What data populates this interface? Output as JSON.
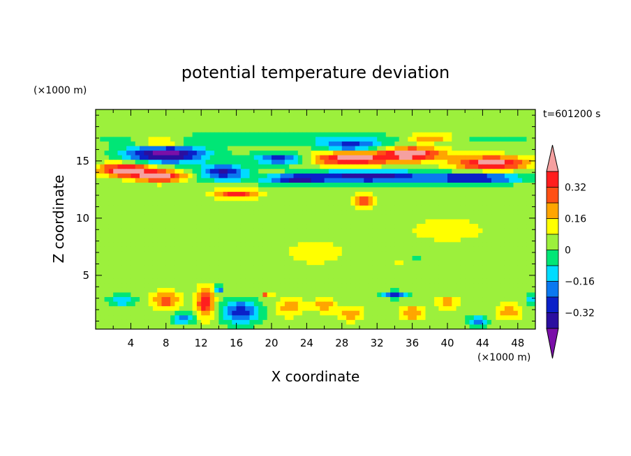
{
  "chart_data": {
    "type": "heatmap",
    "title": "potential temperature deviation",
    "xlabel": "X coordinate",
    "ylabel": "Z coordinate",
    "x_unit": "(×1000 m)",
    "y_unit": "(×1000 m)",
    "time_label": "t=601200 s",
    "xlim": [
      0,
      50
    ],
    "ylim": [
      0.3,
      19.5
    ],
    "x_ticks": [
      4,
      8,
      12,
      16,
      20,
      24,
      28,
      32,
      36,
      40,
      44,
      48
    ],
    "y_ticks": [
      5,
      10,
      15
    ],
    "grid": false,
    "legend": "colorbar-right",
    "colorbar": {
      "levels": [
        -0.4,
        -0.32,
        -0.24,
        -0.16,
        -0.08,
        0,
        0.08,
        0.16,
        0.24,
        0.32,
        0.4
      ],
      "labels": [
        "0.32",
        "0.16",
        "0",
        "−0.16",
        "−0.32"
      ],
      "label_values": [
        0.32,
        0.16,
        0,
        -0.16,
        -0.32
      ],
      "colors": [
        "#7a0fa8",
        "#2a0ea0",
        "#0a20c8",
        "#0a78f0",
        "#00dcff",
        "#00e676",
        "#9cf03c",
        "#ffff00",
        "#ffa500",
        "#ff5014",
        "#ff1e1e",
        "#f5a0a0"
      ]
    },
    "background_value": 0.04,
    "features": [
      {
        "x": 25,
        "z": 13.4,
        "sx": 25,
        "sz": 0.5,
        "amp": -0.1
      },
      {
        "x": 25,
        "z": 16.9,
        "sx": 25,
        "sz": 0.5,
        "amp": -0.1
      },
      {
        "x": 8,
        "z": 15.6,
        "sx": 4.5,
        "sz": 0.8,
        "amp": -0.5
      },
      {
        "x": 3.5,
        "z": 14.2,
        "sx": 3.2,
        "sz": 0.6,
        "amp": 0.44
      },
      {
        "x": 7.5,
        "z": 13.6,
        "sx": 3,
        "sz": 0.5,
        "amp": 0.44
      },
      {
        "x": 7.5,
        "z": 16.6,
        "sx": 2.5,
        "sz": 0.4,
        "amp": 0.3
      },
      {
        "x": 14.5,
        "z": 14.1,
        "sx": 2.5,
        "sz": 0.6,
        "amp": -0.36
      },
      {
        "x": 21,
        "z": 15.2,
        "sx": 3,
        "sz": 0.5,
        "amp": -0.34
      },
      {
        "x": 29,
        "z": 16.3,
        "sx": 3.5,
        "sz": 0.5,
        "amp": -0.3
      },
      {
        "x": 29,
        "z": 15.2,
        "sx": 4.5,
        "sz": 0.6,
        "amp": 0.42
      },
      {
        "x": 36,
        "z": 15.6,
        "sx": 3.5,
        "sz": 0.6,
        "amp": 0.42
      },
      {
        "x": 45,
        "z": 14.8,
        "sx": 4,
        "sz": 0.6,
        "amp": 0.42
      },
      {
        "x": 38,
        "z": 17,
        "sx": 3,
        "sz": 0.4,
        "amp": 0.25
      },
      {
        "x": 31,
        "z": 13.7,
        "sx": 6,
        "sz": 0.5,
        "amp": -0.36
      },
      {
        "x": 43,
        "z": 13.5,
        "sx": 5,
        "sz": 0.45,
        "amp": -0.34
      },
      {
        "x": 23,
        "z": 13.4,
        "sx": 3,
        "sz": 0.4,
        "amp": -0.28
      },
      {
        "x": 16,
        "z": 12.1,
        "sx": 2.5,
        "sz": 0.4,
        "amp": 0.32
      },
      {
        "x": 30.5,
        "z": 11.5,
        "sx": 1.2,
        "sz": 0.5,
        "amp": 0.34
      },
      {
        "x": 8,
        "z": 2.8,
        "sx": 1.6,
        "sz": 0.8,
        "amp": 0.24
      },
      {
        "x": 12.5,
        "z": 2.6,
        "sx": 1,
        "sz": 1.3,
        "amp": 0.36
      },
      {
        "x": 10,
        "z": 1.2,
        "sx": 1.2,
        "sz": 0.5,
        "amp": -0.26
      },
      {
        "x": 16.5,
        "z": 1.8,
        "sx": 2.2,
        "sz": 1,
        "amp": -0.34
      },
      {
        "x": 3,
        "z": 2.8,
        "sx": 1.5,
        "sz": 0.5,
        "amp": -0.2
      },
      {
        "x": 22,
        "z": 2.2,
        "sx": 1.5,
        "sz": 0.8,
        "amp": 0.18
      },
      {
        "x": 26,
        "z": 2.4,
        "sx": 1.3,
        "sz": 0.6,
        "amp": 0.18
      },
      {
        "x": 29,
        "z": 1.6,
        "sx": 1.4,
        "sz": 0.6,
        "amp": 0.18
      },
      {
        "x": 34,
        "z": 3.3,
        "sx": 1.5,
        "sz": 0.3,
        "amp": -0.3
      },
      {
        "x": 36,
        "z": 1.7,
        "sx": 1.3,
        "sz": 0.6,
        "amp": 0.2
      },
      {
        "x": 40,
        "z": 2.6,
        "sx": 1.3,
        "sz": 0.6,
        "amp": 0.16
      },
      {
        "x": 43.5,
        "z": 1,
        "sx": 1,
        "sz": 0.5,
        "amp": -0.3
      },
      {
        "x": 47,
        "z": 1.8,
        "sx": 1.3,
        "sz": 0.7,
        "amp": 0.2
      },
      {
        "x": 49.5,
        "z": 3,
        "sx": 0.6,
        "sz": 0.5,
        "amp": -0.18
      },
      {
        "x": 14,
        "z": 3.8,
        "sx": 0.5,
        "sz": 0.3,
        "amp": -0.3
      },
      {
        "x": 34.5,
        "z": 6.2,
        "sx": 0.2,
        "sz": 0.2,
        "amp": 0.3
      },
      {
        "x": 36.5,
        "z": 6.4,
        "sx": 0.2,
        "sz": 0.2,
        "amp": -0.3
      },
      {
        "x": 19.2,
        "z": 3.4,
        "sx": 0.2,
        "sz": 0.2,
        "amp": 0.3
      },
      {
        "x": 20,
        "z": 3.4,
        "sx": 0.2,
        "sz": 0.2,
        "amp": 0.3
      },
      {
        "x": 25,
        "z": 7,
        "sx": 5,
        "sz": 1.5,
        "amp": 0.06
      },
      {
        "x": 40,
        "z": 9,
        "sx": 6,
        "sz": 1.5,
        "amp": 0.06
      }
    ]
  }
}
